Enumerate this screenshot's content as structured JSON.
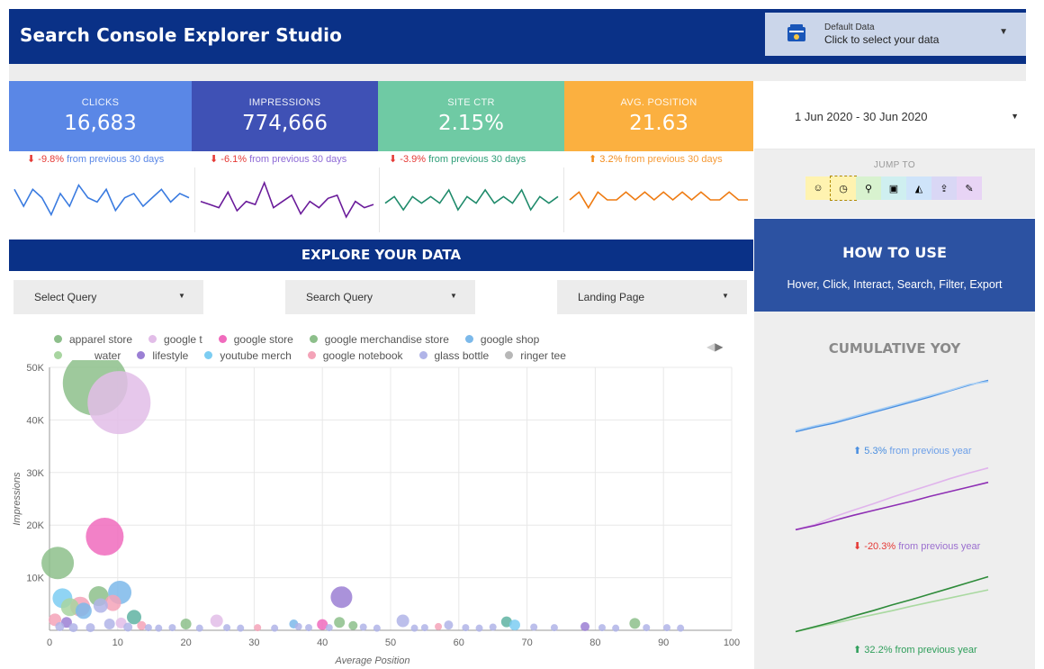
{
  "app": {
    "title": "Search Console Explorer Studio"
  },
  "data_source": {
    "title": "Default Data",
    "subtitle": "Click to select your data",
    "icon": "data-source-icon"
  },
  "kpis": [
    {
      "label": "CLICKS",
      "value": "16,683",
      "color": "#5a87e6",
      "trend": "down",
      "arrow": "⬇",
      "change_pct": "-9.8%",
      "change_text": " from previous 30 days",
      "pct_color": "#e53935",
      "text_color": "#5a87e6",
      "spark": [
        62,
        58,
        62,
        60,
        56,
        61,
        58,
        63,
        60,
        59,
        62,
        57,
        60,
        61,
        58,
        60,
        62,
        59,
        61,
        60
      ]
    },
    {
      "label": "IMPRESSIONS",
      "value": "774,666",
      "color": "#3f51b5",
      "trend": "down",
      "arrow": "⬇",
      "change_pct": "-6.1%",
      "change_text": " from previous 30 days",
      "pct_color": "#e53935",
      "text_color": "#8e6bd6",
      "spark": [
        60,
        59,
        58,
        63,
        57,
        60,
        59,
        66,
        58,
        60,
        62,
        56,
        60,
        58,
        61,
        62,
        55,
        60,
        58,
        59
      ]
    },
    {
      "label": "SITE CTR",
      "value": "2.15%",
      "color": "#6fcaa4",
      "trend": "down",
      "arrow": "⬇",
      "change_pct": "-3.9%",
      "change_text": " from previous 30 days",
      "pct_color": "#e53935",
      "text_color": "#2e9e78",
      "spark": [
        60,
        61,
        59,
        61,
        60,
        61,
        60,
        62,
        59,
        61,
        60,
        62,
        60,
        61,
        60,
        62,
        59,
        61,
        60,
        61
      ]
    },
    {
      "label": "AVG. POSITION",
      "value": "21.63",
      "color": "#fbb040",
      "trend": "up",
      "arrow": "⬆",
      "change_pct": "3.2%",
      "change_text": " from previous 30 days",
      "pct_color": "#f28b1a",
      "text_color": "#f59a36",
      "spark": [
        60,
        61,
        59,
        61,
        60,
        60,
        61,
        60,
        61,
        60,
        61,
        60,
        61,
        60,
        61,
        60,
        60,
        61,
        60,
        60
      ]
    }
  ],
  "date_range": {
    "label": "1 Jun 2020 - 30 Jun 2020"
  },
  "jump_to": {
    "title": "JUMP TO",
    "items": [
      {
        "name": "face-icon",
        "glyph": "☺",
        "bg": "#fff3b0"
      },
      {
        "name": "gauge-icon",
        "glyph": "◷",
        "bg": "#fff3b0"
      },
      {
        "name": "map-pin-icon",
        "glyph": "⚲",
        "bg": "#d8f2cf"
      },
      {
        "name": "image-icon",
        "glyph": "▣",
        "bg": "#cfeff0"
      },
      {
        "name": "landscape-icon",
        "glyph": "◭",
        "bg": "#cfe4fa"
      },
      {
        "name": "export-icon",
        "glyph": "⇪",
        "bg": "#d9d7f5"
      },
      {
        "name": "edit-icon",
        "glyph": "✎",
        "bg": "#e8d4f5"
      }
    ]
  },
  "how_to": {
    "title": "HOW TO USE",
    "text": "Hover, Click, Interact, Search, Filter, Export"
  },
  "yoy": {
    "title": "CUMULATIVE YOY",
    "items": [
      {
        "arrow": "⬆",
        "pct": "5.3%",
        "text": " from previous year",
        "pct_color": "#4a8fe0",
        "text_color": "#6c9fe8"
      },
      {
        "arrow": "⬇",
        "pct": "-20.3%",
        "text": " from previous year",
        "pct_color": "#e53935",
        "text_color": "#9b6fcf"
      },
      {
        "arrow": "⬆",
        "pct": "32.2%",
        "text": " from previous year",
        "pct_color": "#2e9e5a",
        "text_color": "#2e9e5a"
      }
    ]
  },
  "explore": {
    "title": "EXPLORE YOUR DATA"
  },
  "filters": [
    {
      "label": "Select Query"
    },
    {
      "label": "Search Query"
    },
    {
      "label": "Landing Page"
    }
  ],
  "legend": [
    {
      "label": "apparel store",
      "color": "#8dbf8b"
    },
    {
      "label": "google t",
      "color": "#e2bde8"
    },
    {
      "label": "google store",
      "color": "#f06bbd"
    },
    {
      "label": "google merchandise store",
      "color": "#8dbf8b"
    },
    {
      "label": "google shop",
      "color": "#7cb9ea"
    },
    {
      "label": "water",
      "color": "#a8d5a0"
    },
    {
      "label": "lifestyle",
      "color": "#9b7fd4"
    },
    {
      "label": "youtube merch",
      "color": "#7ccdf2"
    },
    {
      "label": "google notebook",
      "color": "#f4a3b8"
    },
    {
      "label": "glass bottle",
      "color": "#b0b4e8"
    },
    {
      "label": "ringer tee",
      "color": "#b7b7b7"
    }
  ],
  "chart_data": {
    "type": "scatter",
    "title": "",
    "xlabel": "Average Position",
    "ylabel": "Impressions",
    "xlim": [
      0,
      100
    ],
    "ylim": [
      0,
      50000
    ],
    "x_ticks": [
      "0",
      "10",
      "20",
      "30",
      "40",
      "50",
      "60",
      "70",
      "80",
      "90",
      "100"
    ],
    "y_ticks": [
      "10K",
      "20K",
      "30K",
      "40K",
      "50K"
    ],
    "grid": true,
    "legend_position": "top",
    "points": [
      {
        "x": 6.7,
        "y": 47000,
        "r": 36,
        "color": "#8dbf8b"
      },
      {
        "x": 10.2,
        "y": 43300,
        "r": 35,
        "color": "#e2bde8"
      },
      {
        "x": 8.1,
        "y": 17800,
        "r": 21,
        "color": "#f06bbd"
      },
      {
        "x": 1.2,
        "y": 12800,
        "r": 18,
        "color": "#8dbf8b"
      },
      {
        "x": 10.3,
        "y": 7200,
        "r": 13,
        "color": "#7cb9ea"
      },
      {
        "x": 42.8,
        "y": 6300,
        "r": 12,
        "color": "#9b7fd4"
      },
      {
        "x": 7.2,
        "y": 6500,
        "r": 11,
        "color": "#8dbf8b"
      },
      {
        "x": 1.9,
        "y": 6100,
        "r": 11,
        "color": "#7ccdf2"
      },
      {
        "x": 4.5,
        "y": 4500,
        "r": 11,
        "color": "#f4a3b8"
      },
      {
        "x": 3.0,
        "y": 4400,
        "r": 10,
        "color": "#a8d5a0"
      },
      {
        "x": 9.3,
        "y": 5200,
        "r": 9,
        "color": "#f4a3b8"
      },
      {
        "x": 7.5,
        "y": 4700,
        "r": 8,
        "color": "#b0b4e8"
      },
      {
        "x": 12.4,
        "y": 2500,
        "r": 8,
        "color": "#5fb3a2"
      },
      {
        "x": 5.0,
        "y": 3700,
        "r": 9,
        "color": "#7cb9ea"
      },
      {
        "x": 0.8,
        "y": 2000,
        "r": 7,
        "color": "#f4a3b8"
      },
      {
        "x": 2.5,
        "y": 1500,
        "r": 6,
        "color": "#9b7fd4"
      },
      {
        "x": 10.5,
        "y": 1400,
        "r": 6,
        "color": "#e2bde8"
      },
      {
        "x": 13.5,
        "y": 900,
        "r": 5,
        "color": "#f4a3b8"
      },
      {
        "x": 8.8,
        "y": 1200,
        "r": 6,
        "color": "#b0b4e8"
      },
      {
        "x": 24.5,
        "y": 1800,
        "r": 7,
        "color": "#e2bde8"
      },
      {
        "x": 20.0,
        "y": 1200,
        "r": 6,
        "color": "#8dbf8b"
      },
      {
        "x": 51.8,
        "y": 1800,
        "r": 7,
        "color": "#b0b4e8"
      },
      {
        "x": 67.0,
        "y": 1600,
        "r": 6,
        "color": "#5fb3a2"
      },
      {
        "x": 68.2,
        "y": 1000,
        "r": 6,
        "color": "#7ccdf2"
      },
      {
        "x": 42.5,
        "y": 1500,
        "r": 6,
        "color": "#8dbf8b"
      },
      {
        "x": 40.0,
        "y": 1100,
        "r": 6,
        "color": "#f06bbd"
      },
      {
        "x": 35.8,
        "y": 1200,
        "r": 5,
        "color": "#7cb9ea"
      },
      {
        "x": 44.5,
        "y": 900,
        "r": 5,
        "color": "#8dbf8b"
      },
      {
        "x": 58.5,
        "y": 1000,
        "r": 5,
        "color": "#b0b4e8"
      },
      {
        "x": 78.5,
        "y": 700,
        "r": 5,
        "color": "#9b7fd4"
      },
      {
        "x": 85.8,
        "y": 1300,
        "r": 6,
        "color": "#8dbf8b"
      },
      {
        "x": 90.5,
        "y": 500,
        "r": 4,
        "color": "#b0b4e8"
      },
      {
        "x": 92.5,
        "y": 400,
        "r": 4,
        "color": "#b0b4e8"
      },
      {
        "x": 71.0,
        "y": 600,
        "r": 4,
        "color": "#b0b4e8"
      },
      {
        "x": 74.0,
        "y": 500,
        "r": 4,
        "color": "#b0b4e8"
      },
      {
        "x": 61.0,
        "y": 500,
        "r": 4,
        "color": "#b0b4e8"
      },
      {
        "x": 63.0,
        "y": 400,
        "r": 4,
        "color": "#b0b4e8"
      },
      {
        "x": 55.0,
        "y": 500,
        "r": 4,
        "color": "#b0b4e8"
      },
      {
        "x": 48.0,
        "y": 400,
        "r": 4,
        "color": "#b0b4e8"
      },
      {
        "x": 46.0,
        "y": 600,
        "r": 4,
        "color": "#b0b4e8"
      },
      {
        "x": 38.0,
        "y": 500,
        "r": 4,
        "color": "#b0b4e8"
      },
      {
        "x": 33.0,
        "y": 400,
        "r": 4,
        "color": "#b0b4e8"
      },
      {
        "x": 30.5,
        "y": 500,
        "r": 4,
        "color": "#f4a3b8"
      },
      {
        "x": 28.0,
        "y": 400,
        "r": 4,
        "color": "#b0b4e8"
      },
      {
        "x": 26.0,
        "y": 500,
        "r": 4,
        "color": "#b0b4e8"
      },
      {
        "x": 22.0,
        "y": 400,
        "r": 4,
        "color": "#b0b4e8"
      },
      {
        "x": 18.0,
        "y": 500,
        "r": 4,
        "color": "#b0b4e8"
      },
      {
        "x": 16.0,
        "y": 400,
        "r": 4,
        "color": "#b0b4e8"
      },
      {
        "x": 14.5,
        "y": 500,
        "r": 4,
        "color": "#b0b4e8"
      },
      {
        "x": 81.0,
        "y": 500,
        "r": 4,
        "color": "#b0b4e8"
      },
      {
        "x": 83.0,
        "y": 400,
        "r": 4,
        "color": "#b0b4e8"
      },
      {
        "x": 87.5,
        "y": 500,
        "r": 4,
        "color": "#b0b4e8"
      },
      {
        "x": 65.0,
        "y": 600,
        "r": 4,
        "color": "#b0b4e8"
      },
      {
        "x": 57.0,
        "y": 700,
        "r": 4,
        "color": "#f4a3b8"
      },
      {
        "x": 53.5,
        "y": 400,
        "r": 4,
        "color": "#b0b4e8"
      },
      {
        "x": 41.0,
        "y": 500,
        "r": 4,
        "color": "#b0b4e8"
      },
      {
        "x": 36.5,
        "y": 700,
        "r": 4,
        "color": "#b0b4e8"
      },
      {
        "x": 1.5,
        "y": 700,
        "r": 5,
        "color": "#b0b4e8"
      },
      {
        "x": 3.5,
        "y": 500,
        "r": 5,
        "color": "#b0b4e8"
      },
      {
        "x": 6.0,
        "y": 500,
        "r": 5,
        "color": "#b0b4e8"
      },
      {
        "x": 11.5,
        "y": 600,
        "r": 5,
        "color": "#b0b4e8"
      }
    ]
  },
  "yoy_lines": [
    {
      "series": [
        {
          "color": "#4a8fe0",
          "values": [
            38.0,
            38.8,
            39.5,
            40.4,
            41.3,
            42.2,
            43.1,
            44.0,
            45.0,
            46.0,
            46.8
          ]
        },
        {
          "color": "#a9d0f5",
          "values": [
            38.2,
            39.0,
            39.7,
            40.6,
            41.5,
            42.4,
            43.3,
            44.2,
            45.1,
            46.1,
            46.6
          ]
        }
      ]
    },
    {
      "series": [
        {
          "color": "#e0b4ec",
          "values": [
            20.0,
            21.0,
            22.5,
            23.8,
            25.0,
            26.3,
            27.5,
            28.7,
            29.9,
            31.0,
            32.0
          ]
        },
        {
          "color": "#8e2fb4",
          "values": [
            20.0,
            20.8,
            21.8,
            22.8,
            23.7,
            24.6,
            25.5,
            26.5,
            27.4,
            28.3,
            29.2
          ]
        }
      ]
    },
    {
      "series": [
        {
          "color": "#a9d9a0",
          "values": [
            5.0,
            6.0,
            7.0,
            8.1,
            9.1,
            10.1,
            11.2,
            12.2,
            13.2,
            14.2,
            15.2
          ]
        },
        {
          "color": "#2e8b3a",
          "values": [
            5.0,
            6.2,
            7.4,
            8.8,
            10.1,
            11.5,
            12.8,
            14.2,
            15.6,
            17.0,
            18.4
          ]
        }
      ]
    }
  ]
}
